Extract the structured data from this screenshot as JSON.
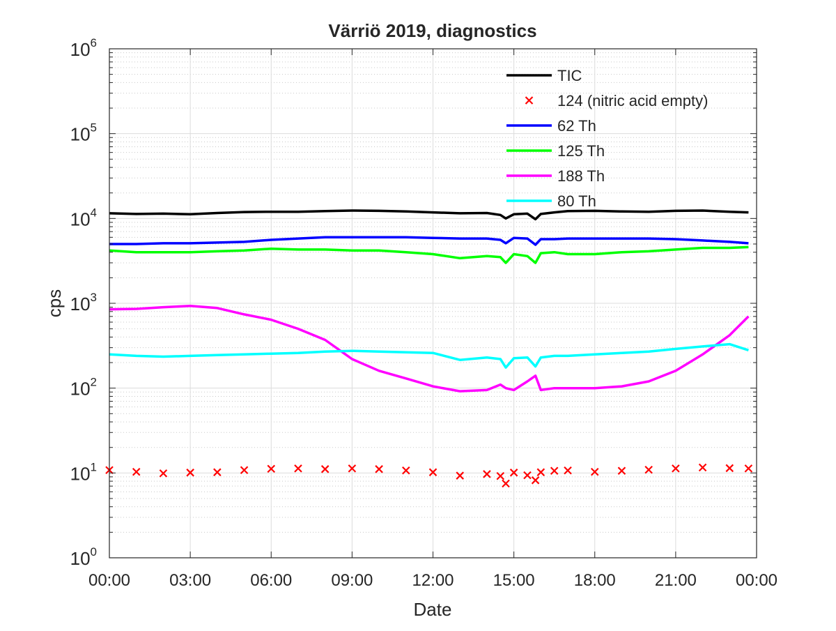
{
  "chart_data": {
    "type": "line",
    "title": "Värriö 2019, diagnostics",
    "xlabel": "Date",
    "ylabel": "cps",
    "y_scale": "log",
    "ylim": [
      1,
      1000000
    ],
    "xlim_hours": [
      0,
      24
    ],
    "y_ticks": [
      {
        "base": "10",
        "exp": "0",
        "value": 1
      },
      {
        "base": "10",
        "exp": "1",
        "value": 10
      },
      {
        "base": "10",
        "exp": "2",
        "value": 100
      },
      {
        "base": "10",
        "exp": "3",
        "value": 1000
      },
      {
        "base": "10",
        "exp": "4",
        "value": 10000
      },
      {
        "base": "10",
        "exp": "5",
        "value": 100000
      },
      {
        "base": "10",
        "exp": "6",
        "value": 1000000
      }
    ],
    "x_ticks": [
      {
        "label": "00:00",
        "hour": 0
      },
      {
        "label": "03:00",
        "hour": 3
      },
      {
        "label": "06:00",
        "hour": 6
      },
      {
        "label": "09:00",
        "hour": 9
      },
      {
        "label": "12:00",
        "hour": 12
      },
      {
        "label": "15:00",
        "hour": 15
      },
      {
        "label": "18:00",
        "hour": 18
      },
      {
        "label": "21:00",
        "hour": 21
      },
      {
        "label": "00:00",
        "hour": 24
      }
    ],
    "grid": true,
    "legend_position": "top-right",
    "x_hours": [
      0,
      1,
      2,
      3,
      4,
      5,
      6,
      7,
      8,
      9,
      10,
      11,
      12,
      13,
      14,
      14.5,
      14.7,
      15,
      15.5,
      15.8,
      16,
      16.5,
      17,
      18,
      19,
      20,
      21,
      22,
      23,
      23.7
    ],
    "series": [
      {
        "name": "TIC",
        "color": "#000000",
        "style": "line",
        "values": [
          11500,
          11300,
          11400,
          11200,
          11600,
          11900,
          12000,
          12000,
          12200,
          12400,
          12300,
          12100,
          11800,
          11500,
          11600,
          11000,
          10000,
          11200,
          11400,
          9800,
          11300,
          11800,
          12200,
          12300,
          12100,
          12000,
          12300,
          12400,
          12000,
          11800
        ]
      },
      {
        "name": "124 (nitric acid empty)",
        "color": "#ff0000",
        "style": "marker",
        "values": [
          10.8,
          10.3,
          9.9,
          10.1,
          10.2,
          10.8,
          11.2,
          11.3,
          11.1,
          11.3,
          11.1,
          10.7,
          10.2,
          9.3,
          9.7,
          9.2,
          7.5,
          10.1,
          9.4,
          8.2,
          10.2,
          10.6,
          10.7,
          10.3,
          10.6,
          10.9,
          11.3,
          11.6,
          11.4,
          11.3
        ]
      },
      {
        "name": "62 Th",
        "color": "#0000ff",
        "style": "line",
        "values": [
          5000,
          5000,
          5100,
          5100,
          5200,
          5300,
          5600,
          5800,
          6000,
          6000,
          6000,
          6000,
          5900,
          5800,
          5800,
          5600,
          5100,
          5900,
          5800,
          4900,
          5700,
          5700,
          5800,
          5800,
          5800,
          5800,
          5700,
          5500,
          5300,
          5100
        ]
      },
      {
        "name": "125 Th",
        "color": "#00ff00",
        "style": "line",
        "values": [
          4200,
          4000,
          4000,
          4000,
          4100,
          4200,
          4400,
          4300,
          4300,
          4200,
          4200,
          4000,
          3800,
          3400,
          3600,
          3500,
          3000,
          3800,
          3600,
          3000,
          3900,
          4000,
          3800,
          3800,
          4000,
          4100,
          4300,
          4500,
          4500,
          4600
        ]
      },
      {
        "name": "188 Th",
        "color": "#ff00ff",
        "style": "line",
        "values": [
          850,
          860,
          900,
          930,
          880,
          740,
          640,
          500,
          370,
          220,
          160,
          130,
          105,
          92,
          95,
          110,
          100,
          95,
          120,
          140,
          95,
          100,
          100,
          100,
          105,
          120,
          160,
          250,
          420,
          700
        ]
      },
      {
        "name": "80 Th",
        "color": "#00ffff",
        "style": "line",
        "values": [
          250,
          240,
          235,
          240,
          245,
          250,
          255,
          260,
          270,
          275,
          270,
          265,
          260,
          215,
          230,
          220,
          175,
          225,
          230,
          180,
          230,
          240,
          240,
          250,
          260,
          270,
          290,
          310,
          330,
          280
        ]
      }
    ]
  }
}
